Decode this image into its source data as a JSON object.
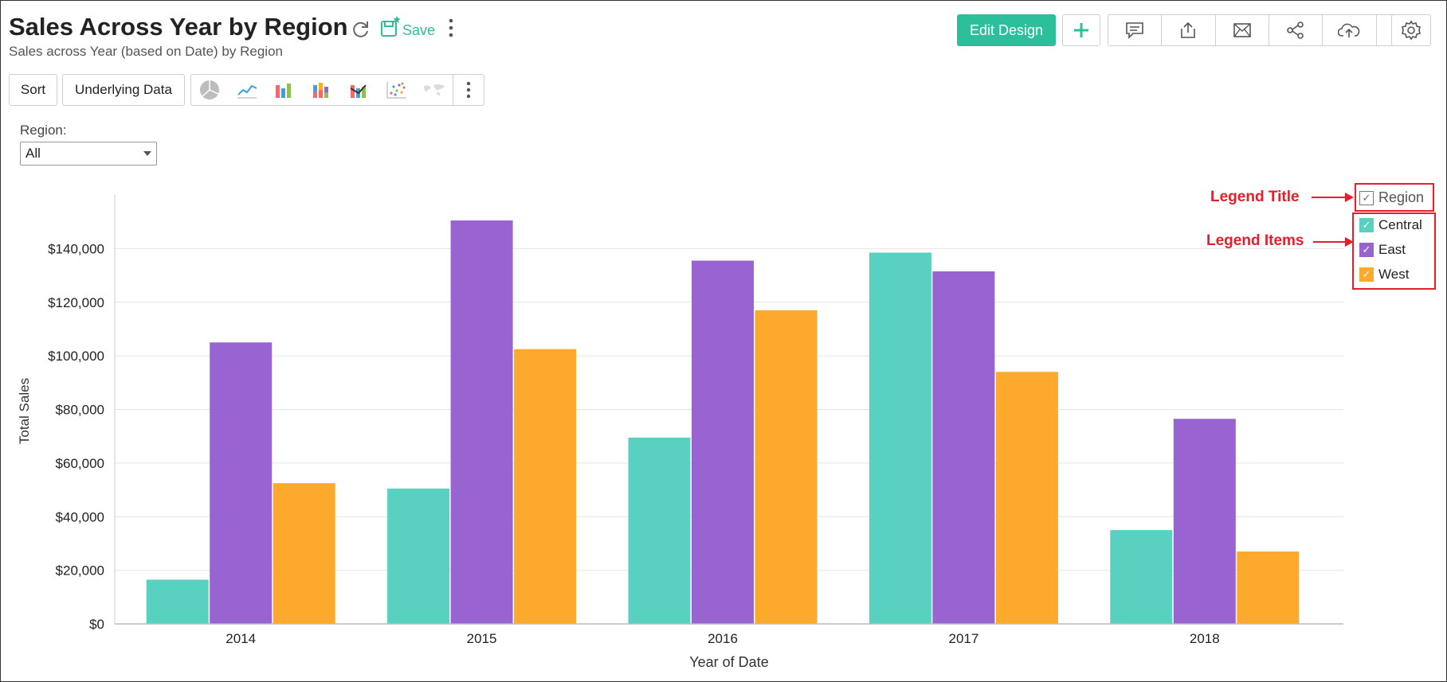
{
  "header": {
    "title": "Sales Across Year by Region",
    "subtitle": "Sales across Year (based on Date) by Region",
    "save_label": "Save",
    "edit_design_label": "Edit Design"
  },
  "toolbar": {
    "sort_label": "Sort",
    "underlying_label": "Underlying Data"
  },
  "filter": {
    "label": "Region:",
    "value": "All"
  },
  "legend": {
    "title": "Region",
    "items": [
      {
        "label": "Central",
        "color": "#58d1c0"
      },
      {
        "label": "East",
        "color": "#9a63d2"
      },
      {
        "label": "West",
        "color": "#fdaa2c"
      }
    ]
  },
  "annotations": {
    "legend_title": "Legend Title",
    "legend_items": "Legend Items"
  },
  "chart_data": {
    "type": "bar",
    "categories": [
      "2014",
      "2015",
      "2016",
      "2017",
      "2018"
    ],
    "series": [
      {
        "name": "Central",
        "color": "#58d1c0",
        "values": [
          16500,
          50500,
          69500,
          138500,
          35000
        ]
      },
      {
        "name": "East",
        "color": "#9a63d2",
        "values": [
          105000,
          150500,
          135500,
          131500,
          76500
        ]
      },
      {
        "name": "West",
        "color": "#fdaa2c",
        "values": [
          52500,
          102500,
          117000,
          94000,
          27000
        ]
      }
    ],
    "xlabel": "Year of Date",
    "ylabel": "Total Sales",
    "ylim": [
      0,
      160000
    ],
    "yticks": [
      0,
      20000,
      40000,
      60000,
      80000,
      100000,
      120000,
      140000
    ],
    "ytick_labels": [
      "$0",
      "$20,000",
      "$40,000",
      "$60,000",
      "$80,000",
      "$100,000",
      "$120,000",
      "$140,000"
    ],
    "grid": true,
    "legend_position": "right"
  }
}
